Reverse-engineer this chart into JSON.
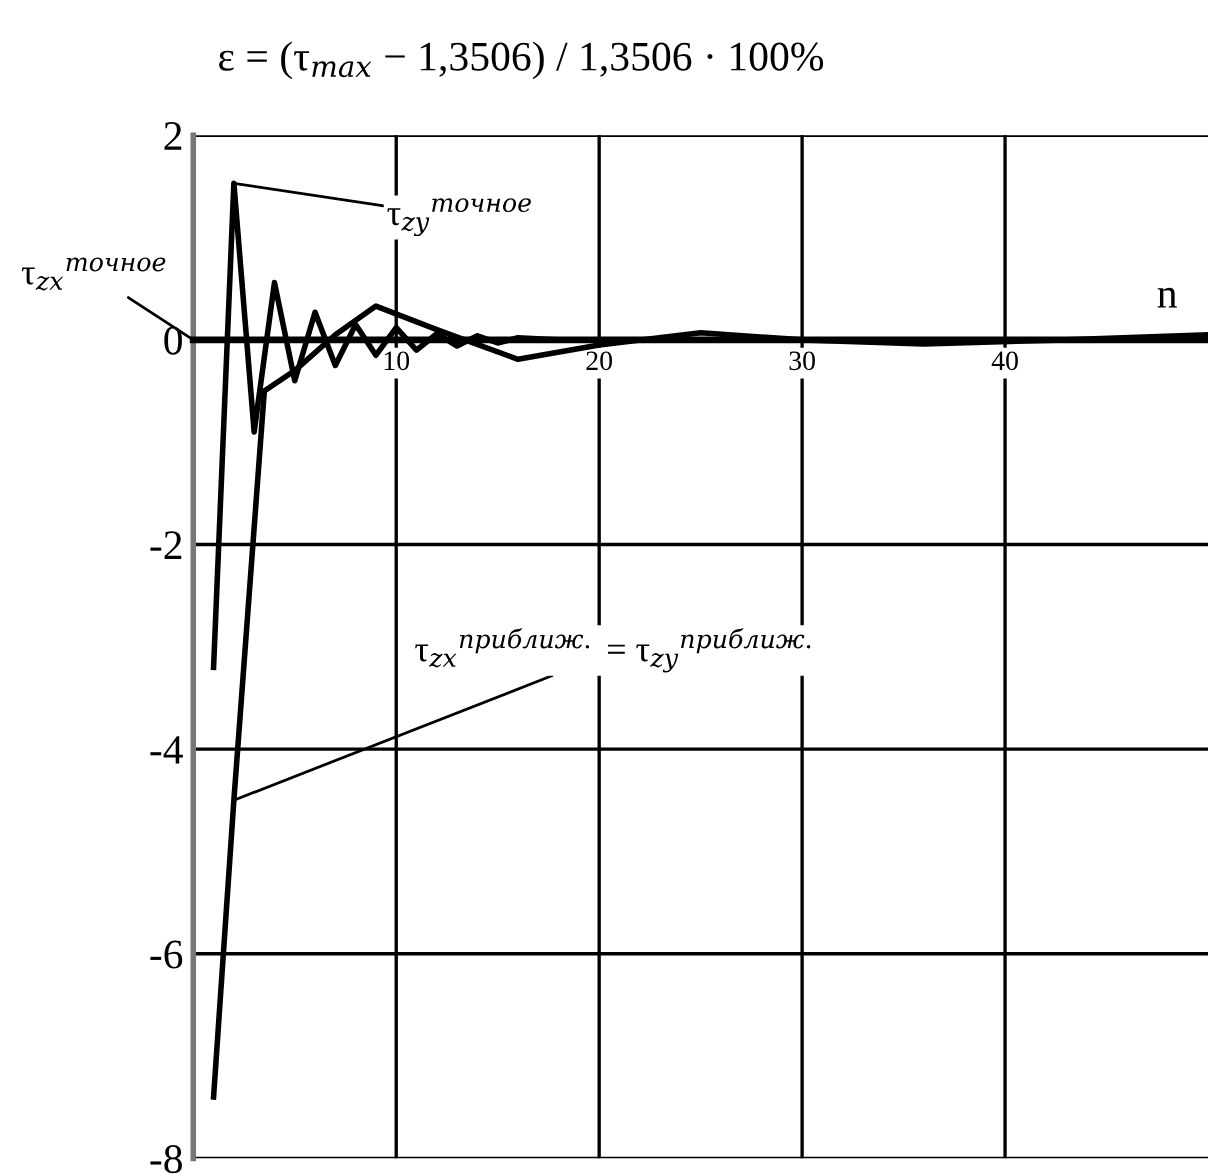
{
  "chart_data": {
    "type": "line",
    "title": "ε = (τ$_{max}$ − 1,3506) / 1,3506 · 100%",
    "xlabel": "n",
    "xlim": [
      0,
      50
    ],
    "ylim": [
      -8,
      2
    ],
    "xticks": [
      10,
      20,
      30,
      40
    ],
    "yticks": [
      -8,
      -6,
      -4,
      -2,
      0,
      2
    ],
    "grid": true,
    "marker": "none",
    "line_style": "solid",
    "series": [
      {
        "color": "#000000",
        "x": [
          1,
          2,
          3,
          4,
          5,
          6,
          7,
          8,
          9,
          10,
          11,
          12,
          13,
          14,
          15,
          16,
          18
        ],
        "values": [
          -3.2,
          1.53,
          -0.9,
          0.56,
          -0.4,
          0.27,
          -0.25,
          0.15,
          -0.15,
          0.12,
          -0.1,
          0.06,
          -0.06,
          0.04,
          -0.03,
          0.02,
          0
        ]
      },
      {
        "color": "#000000",
        "x": [
          1,
          2,
          3.5,
          5,
          7,
          9,
          12,
          16,
          20,
          25,
          30,
          36,
          43,
          50
        ],
        "values": [
          -7.4,
          -4.5,
          -0.5,
          -0.3,
          0.05,
          0.33,
          0.1,
          -0.19,
          -0.05,
          0.07,
          0,
          -0.04,
          0,
          0.05
        ]
      }
    ],
    "annotations": [
      "τ$_{zx}$$^{точное}$",
      {
        "text": "τ$_{zy}$$^{точное}$",
        "x": 2,
        "y": 1.53
      },
      {
        "text": "τ$_{zx}$$^{приближ.}$ = τ$_{zy}$$^{приближ.}$",
        "x": 2,
        "y": -4.5
      }
    ]
  }
}
